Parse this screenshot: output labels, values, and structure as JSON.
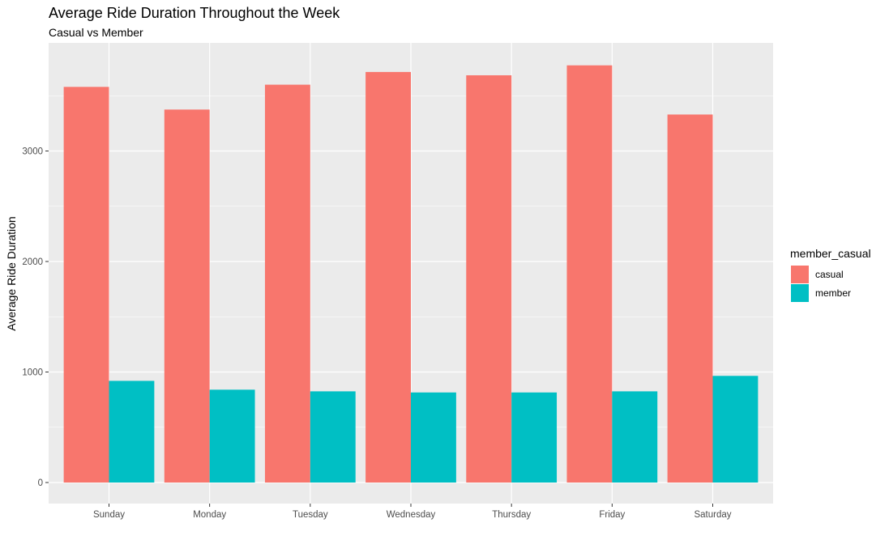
{
  "chart_data": {
    "type": "bar",
    "title": "Average Ride Duration Throughout the Week",
    "subtitle": "Casual vs Member",
    "xlabel": "",
    "ylabel": "Average Ride Duration",
    "categories": [
      "Sunday",
      "Monday",
      "Tuesday",
      "Wednesday",
      "Thursday",
      "Friday",
      "Saturday"
    ],
    "series": [
      {
        "name": "casual",
        "color": "#F8766D",
        "values": [
          3580,
          3375,
          3600,
          3715,
          3685,
          3775,
          3330
        ]
      },
      {
        "name": "member",
        "color": "#00BFC4",
        "values": [
          920,
          840,
          825,
          815,
          815,
          825,
          965
        ]
      }
    ],
    "ylim": [
      0,
      4010
    ],
    "yticks": [
      0,
      1000,
      2000,
      3000
    ],
    "ytick_labels": [
      "0",
      "1000",
      "2000",
      "3000"
    ],
    "grid": true,
    "panel_background": "#EBEBEB",
    "grid_color": "#FFFFFF",
    "legend": {
      "title": "member_casual",
      "position": "right"
    }
  }
}
